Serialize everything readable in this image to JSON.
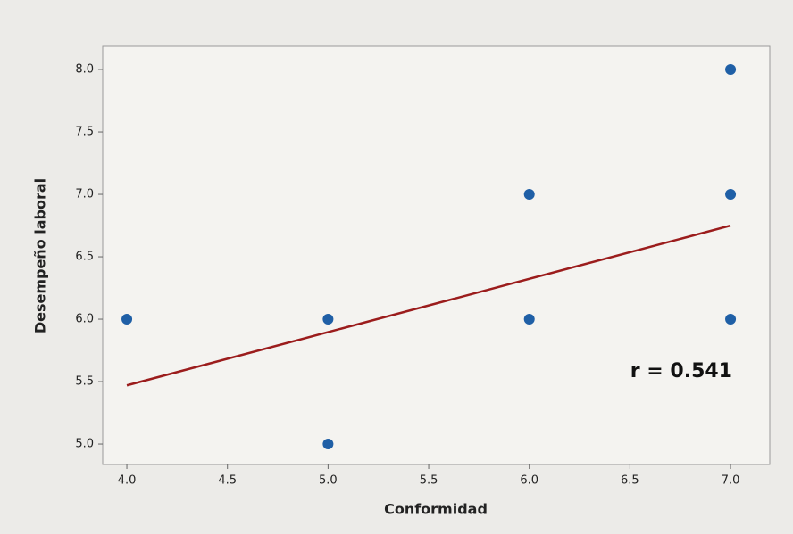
{
  "chart_data": {
    "type": "scatter",
    "x_label": "Conformidad",
    "y_label": "Desempeño laboral",
    "series": [
      {
        "color": "#1f5fa6",
        "x": [
          4,
          5,
          5,
          6,
          6,
          7,
          7,
          7
        ],
        "values": [
          6,
          6,
          5,
          7,
          6,
          8,
          7,
          6
        ]
      }
    ],
    "fit": {
      "color": "#9b1c1c",
      "x": [
        4,
        7
      ],
      "values": [
        5.47,
        6.75
      ]
    },
    "annotation": "r = 0.541",
    "xlim": [
      3.88,
      7.195
    ],
    "ylim": [
      4.836,
      8.186
    ],
    "xticks": [
      {
        "value": 4,
        "label": "4.0"
      },
      {
        "value": 4.5,
        "label": "4.5"
      },
      {
        "value": 5,
        "label": "5.0"
      },
      {
        "value": 5.5,
        "label": "5.5"
      },
      {
        "value": 6,
        "label": "6.0"
      },
      {
        "value": 6.5,
        "label": "6.5"
      },
      {
        "value": 7,
        "label": "7.0"
      }
    ],
    "yticks": [
      {
        "value": 5,
        "label": "5.0"
      },
      {
        "value": 5.5,
        "label": "5.5"
      },
      {
        "value": 6,
        "label": "6.0"
      },
      {
        "value": 6.5,
        "label": "6.5"
      },
      {
        "value": 7,
        "label": "7.0"
      },
      {
        "value": 7.5,
        "label": "7.5"
      },
      {
        "value": 8,
        "label": "8.0"
      }
    ]
  }
}
